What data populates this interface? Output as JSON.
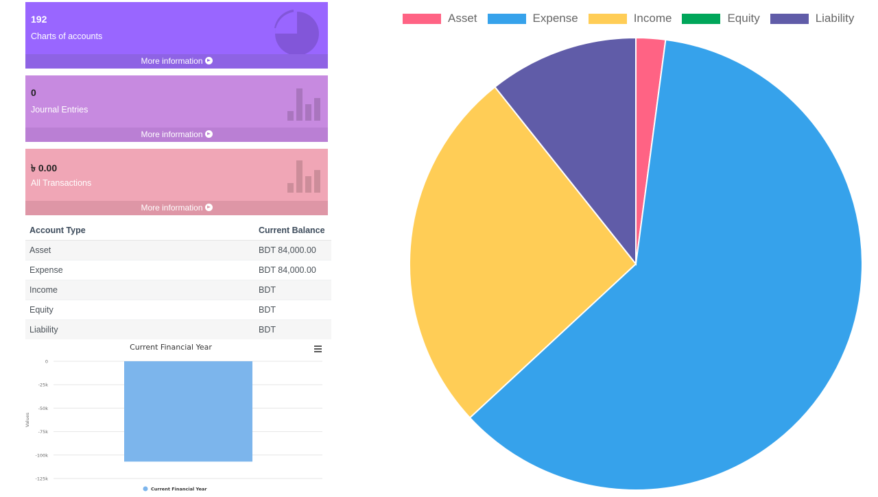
{
  "cards": [
    {
      "value": "192",
      "label": "Charts of accounts",
      "footer": "More information",
      "color": "#9966ff",
      "footer_color": "#8e63e4",
      "icon": "pie-chart-icon"
    },
    {
      "value": "0",
      "label": "Journal Entries",
      "footer": "More information",
      "color": "#c78ae0",
      "footer_color": "#ba7fd4",
      "icon": "bar-chart-icon"
    },
    {
      "value": "৳ 0.00",
      "label": "All Transactions",
      "footer": "More information",
      "color": "#f0a6b6",
      "footer_color": "#de96a6",
      "icon": "bar-chart-icon"
    }
  ],
  "table": {
    "headers": [
      "Account Type",
      "Current Balance"
    ],
    "rows": [
      [
        "Asset",
        "BDT 84,000.00"
      ],
      [
        "Expense",
        "BDT 84,000.00"
      ],
      [
        "Income",
        "BDT"
      ],
      [
        "Equity",
        "BDT"
      ],
      [
        "Liability",
        "BDT"
      ]
    ]
  },
  "chart_data": [
    {
      "type": "bar",
      "title": "Current Financial Year",
      "ylabel": "Values",
      "ylim": [
        -125000,
        0
      ],
      "yticks": [
        0,
        -25000,
        -50000,
        -75000,
        -100000,
        -125000
      ],
      "ytick_labels": [
        "0",
        "-25k",
        "-50k",
        "-75k",
        "-100k",
        "-125k"
      ],
      "categories": [
        ""
      ],
      "series": [
        {
          "name": "Current Financial Year",
          "values": [
            -107000
          ],
          "color": "#7cb5ec"
        }
      ],
      "legend": "bottom",
      "grid": true
    },
    {
      "type": "pie",
      "legend": "top",
      "labels": [
        "Asset",
        "Expense",
        "Income",
        "Equity",
        "Liability"
      ],
      "colors": [
        "#ff6384",
        "#36a2eb",
        "#ffcd56",
        "#00a65a",
        "#605ca8"
      ],
      "values": [
        2.1,
        61.0,
        26.2,
        0,
        10.7
      ]
    }
  ]
}
